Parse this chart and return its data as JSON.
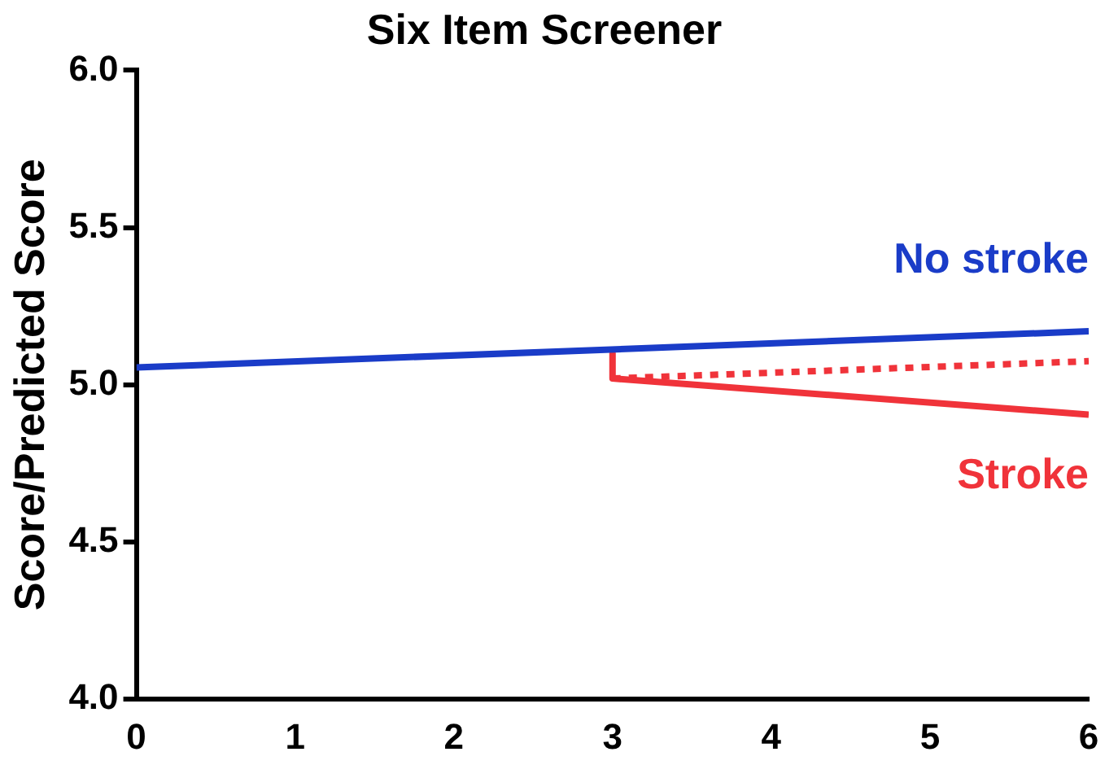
{
  "chart_data": {
    "type": "line",
    "title": "Six Item Screener",
    "ylabel": "Score/Predicted Score",
    "xlim": [
      0,
      6
    ],
    "xticks": [
      0,
      1,
      2,
      3,
      4,
      5,
      6
    ],
    "ylim": [
      4.0,
      6.0
    ],
    "yticks": [
      {
        "value": 4.0,
        "label": "4.0"
      },
      {
        "value": 4.5,
        "label": "4.5"
      },
      {
        "value": 5.0,
        "label": "5.0"
      },
      {
        "value": 5.5,
        "label": "5.5"
      },
      {
        "value": 6.0,
        "label": "6.0"
      }
    ],
    "grid": false,
    "legend": false,
    "marker": "none",
    "series": [
      {
        "name": "No stroke",
        "color": "#1a3cc8",
        "x": [
          0,
          6
        ],
        "values": [
          5.055,
          5.17
        ]
      },
      {
        "name": "Stroke",
        "color": "#f0333a",
        "x": [
          3,
          3,
          6
        ],
        "values": [
          5.1,
          5.02,
          4.905
        ]
      },
      {
        "color": "#f0333a",
        "x": [
          3,
          6
        ],
        "values": [
          5.02,
          5.075
        ],
        "line_style": "dotted"
      }
    ]
  }
}
